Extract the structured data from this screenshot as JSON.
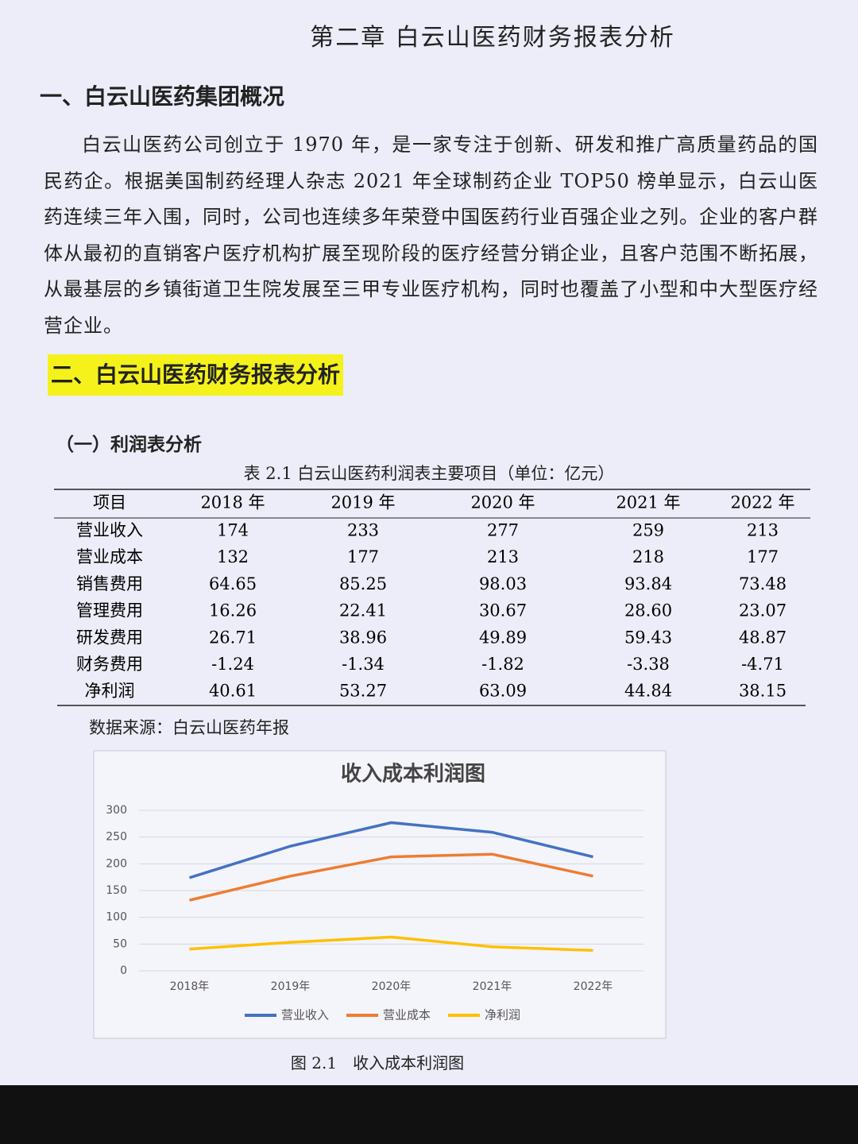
{
  "header": {
    "title": "第二章  白云山医药财务报表分析"
  },
  "section1": {
    "heading": "一、白云山医药集团概况",
    "paragraph": "白云山医药公司创立于 1970 年，是一家专注于创新、研发和推广高质量药品的国民药企。根据美国制药经理人杂志 2021 年全球制药企业 TOP50 榜单显示，白云山医药连续三年入围，同时，公司也连续多年荣登中国医药行业百强企业之列。企业的客户群体从最初的直销客户医疗机构扩展至现阶段的医疗经营分销企业，且客户范围不断拓展，从最基层的乡镇街道卫生院发展至三甲专业医疗机构，同时也覆盖了小型和中大型医疗经营企业。"
  },
  "section2": {
    "heading": "二、白云山医药财务报表分析",
    "subheading": "（一）利润表分析"
  },
  "table": {
    "caption": "表 2.1  白云山医药利润表主要项目（单位：亿元）",
    "columns": [
      "项目",
      "2018 年",
      "2019 年",
      "2020 年",
      "2021 年",
      "2022 年"
    ],
    "rows": [
      [
        "营业收入",
        "174",
        "233",
        "277",
        "259",
        "213"
      ],
      [
        "营业成本",
        "132",
        "177",
        "213",
        "218",
        "177"
      ],
      [
        "销售费用",
        "64.65",
        "85.25",
        "98.03",
        "93.84",
        "73.48"
      ],
      [
        "管理费用",
        "16.26",
        "22.41",
        "30.67",
        "28.60",
        "23.07"
      ],
      [
        "研发费用",
        "26.71",
        "38.96",
        "49.89",
        "59.43",
        "48.87"
      ],
      [
        "财务费用",
        "-1.24",
        "-1.34",
        "-1.82",
        "-3.38",
        "-4.71"
      ],
      [
        "净利润",
        "40.61",
        "53.27",
        "63.09",
        "44.84",
        "38.15"
      ]
    ],
    "source": "数据来源：白云山医药年报"
  },
  "chart_data": {
    "type": "line",
    "title": "收入成本利润图",
    "categories": [
      "2018年",
      "2019年",
      "2020年",
      "2021年",
      "2022年"
    ],
    "series": [
      {
        "name": "营业收入",
        "color": "#4472c4",
        "values": [
          174,
          233,
          277,
          259,
          213
        ]
      },
      {
        "name": "营业成本",
        "color": "#ed7d31",
        "values": [
          132,
          177,
          213,
          218,
          177
        ]
      },
      {
        "name": "净利润",
        "color": "#ffc000",
        "values": [
          40.61,
          53.27,
          63.09,
          44.84,
          38.15
        ]
      }
    ],
    "ylim": [
      0,
      300
    ],
    "yticks": [
      0,
      50,
      100,
      150,
      200,
      250,
      300
    ],
    "grid": true,
    "legend": "bottom"
  },
  "figure_caption": "图 2.1　收入成本利润图"
}
